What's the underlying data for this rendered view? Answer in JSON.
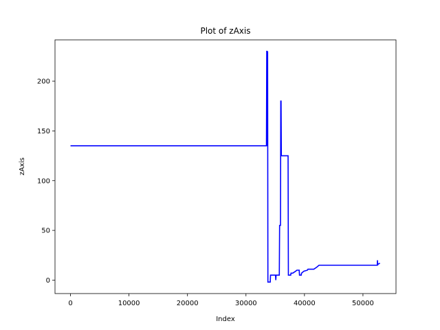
{
  "chart_data": {
    "type": "line",
    "title": "Plot of zAxis",
    "xlabel": "Index",
    "ylabel": "zAxis",
    "xlim": [
      -2650,
      55650
    ],
    "ylim": [
      -13.5,
      241.5
    ],
    "grid": false,
    "legend": "none",
    "x_ticks": [
      0,
      10000,
      20000,
      30000,
      40000,
      50000
    ],
    "x_tick_labels": [
      "0",
      "10000",
      "20000",
      "30000",
      "40000",
      "50000"
    ],
    "y_ticks": [
      0,
      50,
      100,
      150,
      200
    ],
    "y_tick_labels": [
      "0",
      "50",
      "100",
      "150",
      "200"
    ],
    "series": [
      {
        "color": "#0000ff",
        "x": [
          0,
          33500,
          33550,
          33600,
          33650,
          33700,
          33750,
          34150,
          34200,
          35050,
          35100,
          35150,
          35200,
          35700,
          35750,
          35900,
          35950,
          36000,
          36050,
          36100,
          37200,
          37250,
          37300,
          37650,
          37700,
          38000,
          38500,
          38700,
          39100,
          39150,
          39450,
          39500,
          39900,
          40500,
          40600,
          41600,
          42100,
          42500,
          42700,
          52450,
          52480,
          52520,
          52560,
          52900
        ],
        "y": [
          135,
          135,
          230,
          230,
          135,
          230,
          -2,
          -2,
          5,
          5,
          0,
          5,
          5,
          5,
          55,
          55,
          180,
          180,
          125,
          125,
          125,
          5,
          5,
          5,
          7,
          7,
          9,
          10,
          10,
          5,
          5,
          7,
          9,
          10,
          11,
          11,
          13,
          15,
          15,
          15,
          20,
          15,
          16,
          17
        ]
      }
    ]
  }
}
